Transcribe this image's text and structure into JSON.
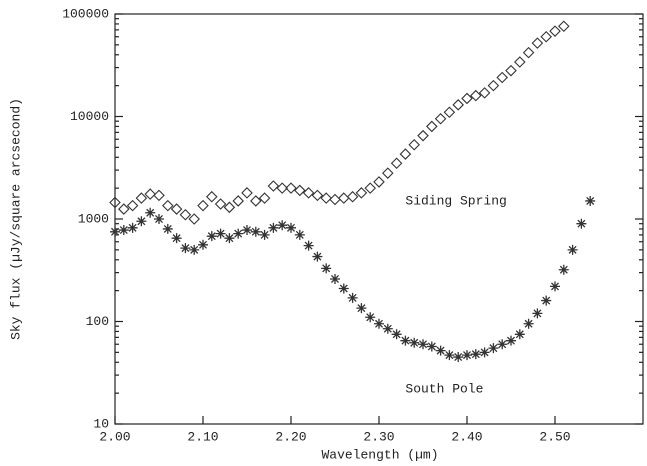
{
  "chart_data": {
    "type": "scatter",
    "xlabel": "Wavelength (µm)",
    "ylabel": "Sky flux (µJy/square arcsecond)",
    "xlim": [
      2.0,
      2.6
    ],
    "xticks": [
      {
        "value": 2.0,
        "label": "2.00"
      },
      {
        "value": 2.1,
        "label": "2.10"
      },
      {
        "value": 2.2,
        "label": "2.20"
      },
      {
        "value": 2.3,
        "label": "2.30"
      },
      {
        "value": 2.4,
        "label": "2.40"
      },
      {
        "value": 2.5,
        "label": "2.50"
      }
    ],
    "ylim": [
      10,
      100000
    ],
    "yticks": [
      10,
      100,
      1000,
      10000,
      100000
    ],
    "yscale": "log",
    "series": [
      {
        "name": "Siding Spring",
        "marker": "diamond",
        "color": "#333333",
        "label_at": [
          2.33,
          1500
        ],
        "x": [
          2.0,
          2.01,
          2.02,
          2.03,
          2.04,
          2.05,
          2.06,
          2.07,
          2.08,
          2.09,
          2.1,
          2.11,
          2.12,
          2.13,
          2.14,
          2.15,
          2.16,
          2.17,
          2.18,
          2.19,
          2.2,
          2.21,
          2.22,
          2.23,
          2.24,
          2.25,
          2.26,
          2.27,
          2.28,
          2.29,
          2.3,
          2.31,
          2.32,
          2.33,
          2.34,
          2.35,
          2.36,
          2.37,
          2.38,
          2.39,
          2.4,
          2.41,
          2.42,
          2.43,
          2.44,
          2.45,
          2.46,
          2.47,
          2.48,
          2.49,
          2.5,
          2.51
        ],
        "values": [
          1450,
          1250,
          1350,
          1600,
          1750,
          1700,
          1350,
          1250,
          1100,
          1000,
          1350,
          1650,
          1400,
          1300,
          1500,
          1800,
          1500,
          1600,
          2100,
          2000,
          2000,
          1900,
          1800,
          1700,
          1600,
          1550,
          1600,
          1650,
          1800,
          2000,
          2300,
          2800,
          3500,
          4300,
          5300,
          6500,
          8000,
          9500,
          11000,
          13000,
          15000,
          16000,
          17000,
          20000,
          24000,
          28000,
          34000,
          42000,
          52000,
          60000,
          68000,
          76000
        ]
      },
      {
        "name": "South Pole",
        "marker": "asterisk",
        "color": "#333333",
        "label_at": [
          2.33,
          22
        ],
        "x": [
          2.0,
          2.01,
          2.02,
          2.03,
          2.04,
          2.05,
          2.06,
          2.07,
          2.08,
          2.09,
          2.1,
          2.11,
          2.12,
          2.13,
          2.14,
          2.15,
          2.16,
          2.17,
          2.18,
          2.19,
          2.2,
          2.21,
          2.22,
          2.23,
          2.24,
          2.25,
          2.26,
          2.27,
          2.28,
          2.29,
          2.3,
          2.31,
          2.32,
          2.33,
          2.34,
          2.35,
          2.36,
          2.37,
          2.38,
          2.39,
          2.4,
          2.41,
          2.42,
          2.43,
          2.44,
          2.45,
          2.46,
          2.47,
          2.48,
          2.49,
          2.5,
          2.51,
          2.52,
          2.53,
          2.54
        ],
        "values": [
          750,
          780,
          820,
          950,
          1150,
          1000,
          800,
          650,
          520,
          500,
          560,
          680,
          720,
          650,
          720,
          780,
          750,
          700,
          820,
          870,
          820,
          700,
          550,
          430,
          330,
          260,
          210,
          170,
          135,
          110,
          95,
          85,
          75,
          65,
          62,
          60,
          57,
          52,
          47,
          45,
          47,
          48,
          50,
          55,
          60,
          65,
          75,
          95,
          120,
          160,
          220,
          320,
          500,
          900,
          1500
        ]
      }
    ]
  }
}
